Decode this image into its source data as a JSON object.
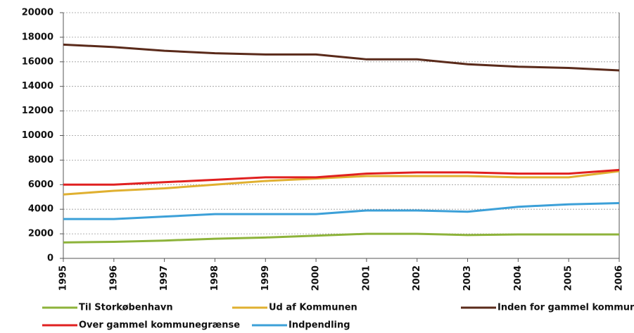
{
  "chart_data": {
    "type": "line",
    "x": [
      1995,
      1996,
      1997,
      1998,
      1999,
      2000,
      2001,
      2002,
      2003,
      2004,
      2005,
      2006
    ],
    "xlim": [
      1995,
      2006
    ],
    "xticks": [
      1995,
      1996,
      1997,
      1998,
      1999,
      2000,
      2001,
      2002,
      2003,
      2004,
      2005,
      2006
    ],
    "ylim": [
      0,
      20000
    ],
    "yticks": [
      0,
      2000,
      4000,
      6000,
      8000,
      10000,
      12000,
      14000,
      16000,
      18000,
      20000
    ],
    "grid": true,
    "legend": "bottom",
    "series": [
      {
        "name": "Til Storkøbenhavn",
        "color": "#8db33a",
        "values": [
          1300,
          1350,
          1450,
          1600,
          1700,
          1850,
          2000,
          2000,
          1900,
          1950,
          1950,
          1950
        ]
      },
      {
        "name": "Ud af Kommunen",
        "color": "#e0b030",
        "values": [
          5200,
          5500,
          5700,
          6000,
          6300,
          6500,
          6700,
          6700,
          6700,
          6600,
          6600,
          7100
        ]
      },
      {
        "name": "Inden for gammel kommune",
        "color": "#5a2a1a",
        "values": [
          17400,
          17200,
          16900,
          16700,
          16600,
          16600,
          16200,
          16200,
          15800,
          15600,
          15500,
          15300
        ]
      },
      {
        "name": "Over gammel kommunegrænse",
        "color": "#e02020",
        "values": [
          6000,
          6000,
          6200,
          6400,
          6600,
          6600,
          6900,
          7000,
          7000,
          6900,
          6900,
          7200
        ]
      },
      {
        "name": "Indpendling",
        "color": "#3ca0d8",
        "values": [
          3200,
          3200,
          3400,
          3600,
          3600,
          3600,
          3900,
          3900,
          3800,
          4200,
          4400,
          4500
        ]
      }
    ]
  }
}
